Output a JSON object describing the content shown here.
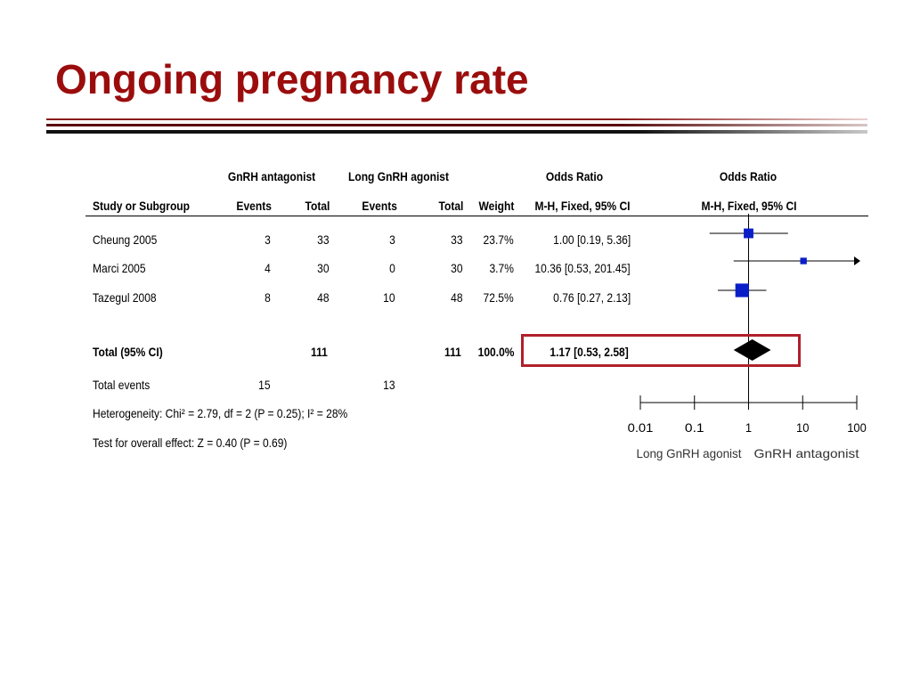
{
  "title": "Ongoing pregnancy rate",
  "table": {
    "group_headers": {
      "experimental": "GnRH antagonist",
      "control": "Long GnRH agonist",
      "or_ci": "Odds Ratio",
      "or_plot": "Odds Ratio"
    },
    "col_headers": {
      "study": "Study or Subgroup",
      "exp_events": "Events",
      "exp_total": "Total",
      "ctl_events": "Events",
      "ctl_total": "Total",
      "weight": "Weight",
      "ci": "M-H, Fixed, 95% CI",
      "plot": "M-H, Fixed, 95% CI"
    },
    "rows": [
      {
        "study": "Cheung 2005",
        "exp_events": "3",
        "exp_total": "33",
        "ctl_events": "3",
        "ctl_total": "33",
        "weight": "23.7%",
        "ci": "1.00 [0.19, 5.36]"
      },
      {
        "study": "Marci 2005",
        "exp_events": "4",
        "exp_total": "30",
        "ctl_events": "0",
        "ctl_total": "30",
        "weight": "3.7%",
        "ci": "10.36 [0.53, 201.45]"
      },
      {
        "study": "Tazegul 2008",
        "exp_events": "8",
        "exp_total": "48",
        "ctl_events": "10",
        "ctl_total": "48",
        "weight": "72.5%",
        "ci": "0.76 [0.27, 2.13]"
      }
    ],
    "total": {
      "study": "Total (95% CI)",
      "exp_total": "111",
      "ctl_total": "111",
      "weight": "100.0%",
      "ci": "1.17 [0.53, 2.58]"
    },
    "total_events": {
      "label": "Total events",
      "exp_events": "15",
      "ctl_events": "13"
    },
    "heterogeneity": "Heterogeneity: Chi² = 2.79, df = 2 (P = 0.25); I² = 28%",
    "overall_effect": "Test for overall effect: Z = 0.40 (P = 0.69)"
  },
  "chart_data": {
    "type": "scatter",
    "subtype": "forest-plot",
    "x_scale": "log",
    "xlim": [
      0.01,
      100
    ],
    "ticks": [
      0.01,
      0.1,
      1,
      10,
      100
    ],
    "tick_labels": [
      "0.01",
      "0.1",
      "1",
      "10",
      "100"
    ],
    "left_label": "Long GnRH agonist",
    "right_label": "GnRH antagonist",
    "studies": [
      {
        "name": "Cheung 2005",
        "or": 1.0,
        "lower": 0.19,
        "upper": 5.36,
        "weight": 23.7
      },
      {
        "name": "Marci 2005",
        "or": 10.36,
        "lower": 0.53,
        "upper": 201.45,
        "weight": 3.7
      },
      {
        "name": "Tazegul 2008",
        "or": 0.76,
        "lower": 0.27,
        "upper": 2.13,
        "weight": 72.5
      }
    ],
    "pooled": {
      "or": 1.17,
      "lower": 0.53,
      "upper": 2.58
    },
    "colors": {
      "box": "#0a1ec8",
      "line": "#000000",
      "highlight": "#b0202a"
    }
  }
}
